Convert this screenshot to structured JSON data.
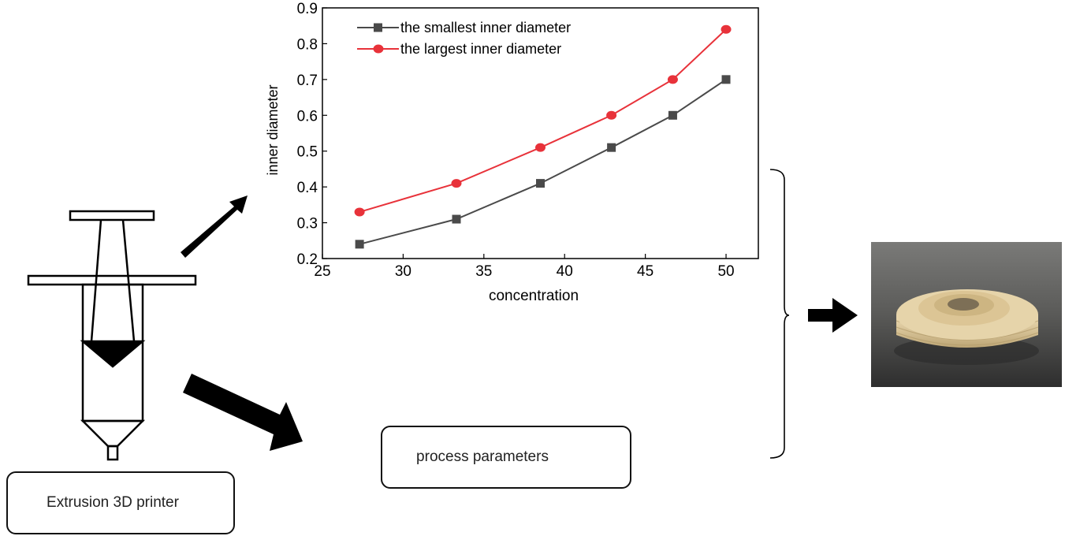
{
  "labels": {
    "printer": "Extrusion 3D printer",
    "process": "process parameters"
  },
  "chart_data": {
    "type": "line",
    "xlabel": "concentration",
    "ylabel": "inner diameter",
    "xlim": [
      25,
      52
    ],
    "ylim": [
      0.2,
      0.9
    ],
    "xticks": [
      25,
      30,
      35,
      40,
      45,
      50
    ],
    "yticks": [
      0.2,
      0.3,
      0.4,
      0.5,
      0.6,
      0.7,
      0.8,
      0.9
    ],
    "grid": false,
    "legend_position": "top-left",
    "x": [
      27.3,
      33.3,
      38.5,
      42.9,
      46.7,
      50
    ],
    "series": [
      {
        "name": "the smallest inner diameter",
        "color": "#4a4a4a",
        "marker": "square",
        "values": [
          0.24,
          0.31,
          0.41,
          0.51,
          0.6,
          0.7
        ]
      },
      {
        "name": "the largest inner diameter",
        "color": "#e8323a",
        "marker": "circle",
        "values": [
          0.33,
          0.41,
          0.51,
          0.6,
          0.7,
          0.84
        ]
      }
    ]
  },
  "colors": {
    "ink": "#000000",
    "photo_bg": "#4a4a48",
    "sample": "#e3cfa4"
  },
  "icons": [
    "syringe-icon",
    "arrow-up-right-icon",
    "arrow-down-right-icon",
    "arrow-right-icon",
    "brace-icon"
  ]
}
